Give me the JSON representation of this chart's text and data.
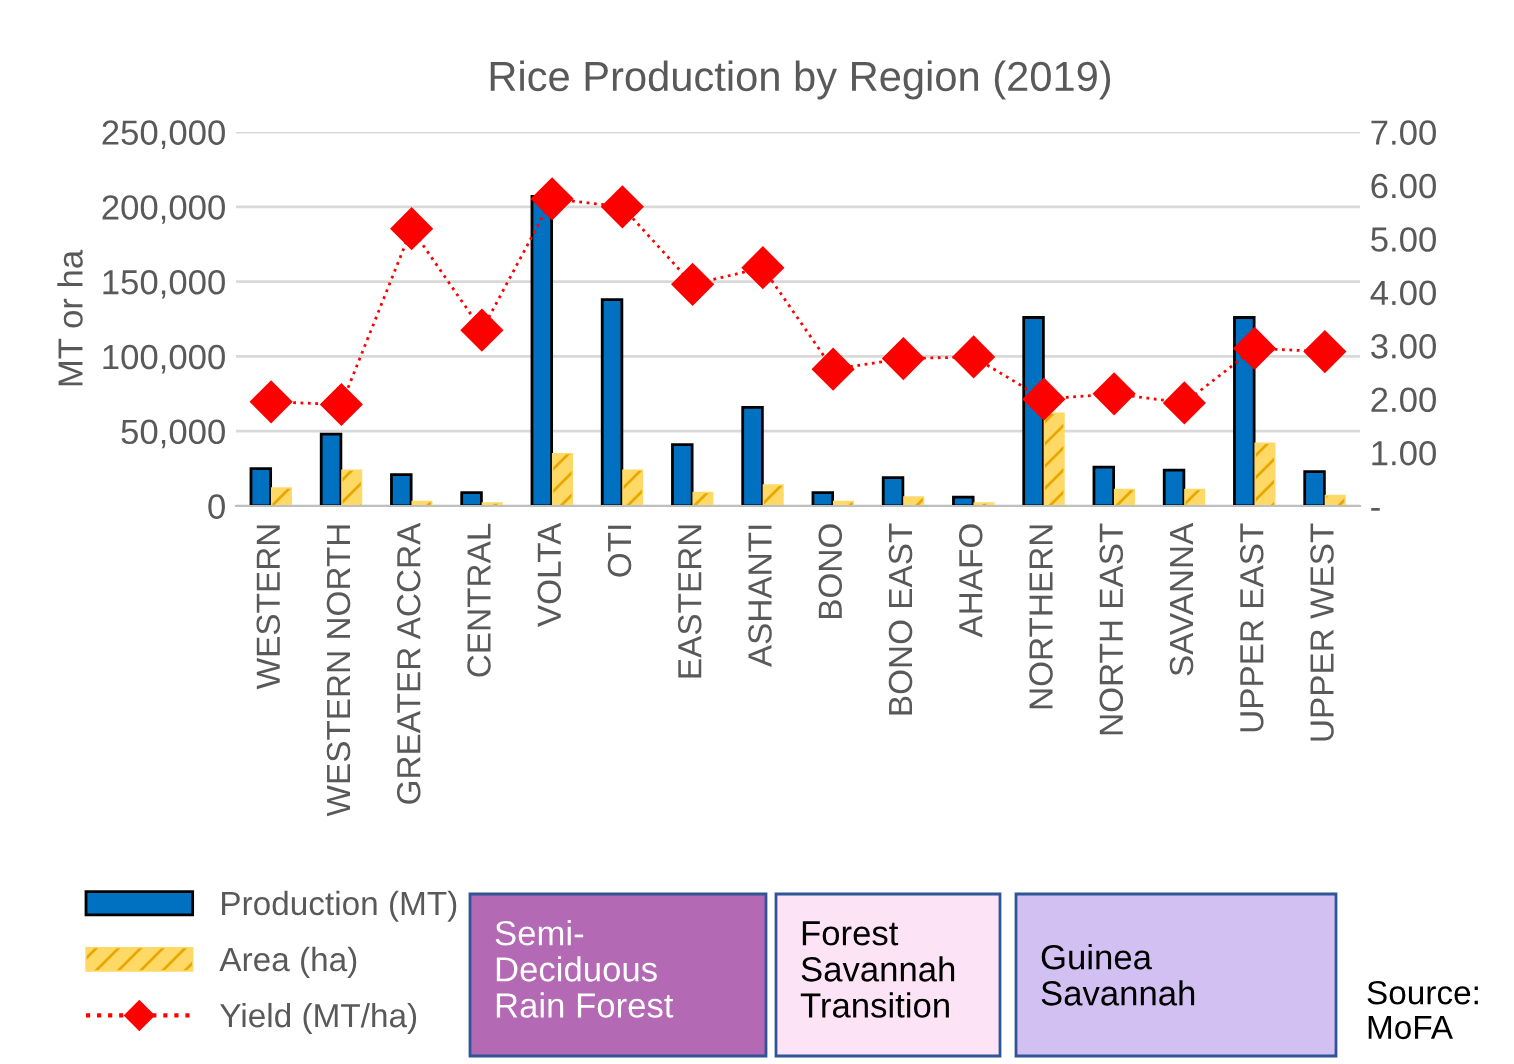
{
  "chart_data": {
    "type": "bar",
    "title": "Rice Production by Region (2019)",
    "ylabel": "MT or ha",
    "categories": [
      "WESTERN",
      "WESTERN NORTH",
      "GREATER ACCRA",
      "CENTRAL",
      "VOLTA",
      "OTI",
      "EASTERN",
      "ASHANTI",
      "BONO",
      "BONO EAST",
      "AHAFO",
      "NORTHERN",
      "NORTH EAST",
      "SAVANNA",
      "UPPER EAST",
      "UPPER WEST"
    ],
    "series": [
      {
        "name": "Production (MT)",
        "color": "#0070c0",
        "values": [
          25000,
          48000,
          21000,
          9000,
          207000,
          138000,
          41000,
          66000,
          9000,
          19000,
          6000,
          126000,
          26000,
          24000,
          126000,
          23000
        ]
      },
      {
        "name": "Area (ha)",
        "color": "#ffd966",
        "values": [
          12000,
          24000,
          3000,
          2000,
          35000,
          24000,
          9000,
          14000,
          3000,
          6000,
          2000,
          62000,
          11000,
          11000,
          42000,
          7000
        ]
      },
      {
        "name": "Yield (MT/ha)",
        "type": "line",
        "axis": "y2",
        "color": "#ff0000",
        "values": [
          1.95,
          1.9,
          5.19,
          3.29,
          5.75,
          5.6,
          4.15,
          4.46,
          2.56,
          2.76,
          2.79,
          2.0,
          2.1,
          1.93,
          2.95,
          2.89
        ]
      }
    ],
    "ylim": [
      0,
      250000
    ],
    "yticks": [
      0,
      {
        "value": 50000,
        "label": "50,000"
      },
      {
        "value": 100000,
        "label": "100,000"
      },
      {
        "value": 150000,
        "label": "150,000"
      },
      {
        "value": 200000,
        "label": "200,000"
      },
      {
        "value": 250000,
        "label": "250,000"
      }
    ],
    "y2lim": [
      0,
      7
    ],
    "y2ticks": [
      {
        "value": 0,
        "label": "-"
      },
      {
        "value": 1,
        "label": "1.00"
      },
      {
        "value": 2,
        "label": "2.00"
      },
      {
        "value": 3,
        "label": "3.00"
      },
      {
        "value": 4,
        "label": "4.00"
      },
      {
        "value": 5,
        "label": "5.00"
      },
      {
        "value": 6,
        "label": "6.00"
      },
      {
        "value": 7,
        "label": "7.00"
      }
    ],
    "grid": "y",
    "legend": "bottom left",
    "marker": "diamond",
    "line_style": "dotted",
    "annotations": [
      "Semi-\nDeciduous\nRain Forest",
      "Forest\nSavannah\nTransition",
      "Guinea\nSavannah",
      "Source:\nMoFA"
    ]
  }
}
